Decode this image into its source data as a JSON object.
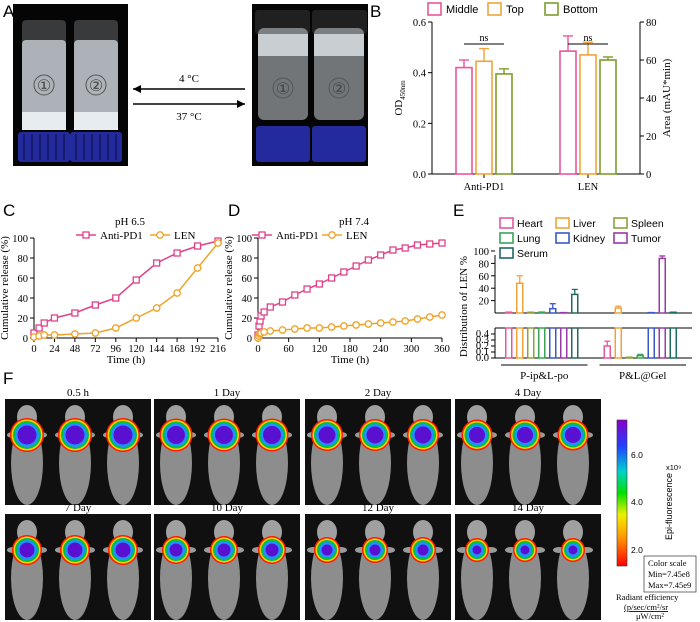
{
  "panels": {
    "A": "A",
    "B": "B",
    "C": "C",
    "D": "D",
    "E": "E",
    "F": "F"
  },
  "panel_a": {
    "vial1_marker": "①",
    "vial2_marker": "②",
    "arrow_top_label": "4 °C",
    "arrow_bottom_label": "37 °C",
    "colors": {
      "background": "#000000",
      "cap": "#232a9c",
      "gel": "#dfe6ea"
    }
  },
  "chart_data": [
    {
      "id": "B",
      "type": "bar",
      "categories": [
        "Anti-PD1",
        "LEN"
      ],
      "series": [
        {
          "name": "Middle",
          "color": "#e8569c",
          "values": [
            0.42,
            0.485
          ],
          "errors": [
            0.03,
            0.06
          ]
        },
        {
          "name": "Top",
          "color": "#f0a33a",
          "values": [
            0.445,
            0.47
          ],
          "errors": [
            0.05,
            0.05
          ]
        },
        {
          "name": "Bottom",
          "color": "#7d9d2b",
          "values": [
            0.395,
            0.45
          ],
          "errors": [
            0.02,
            0.012
          ]
        }
      ],
      "significance": [
        "ns",
        "ns"
      ],
      "ylabel_left": "OD",
      "ylabel_left_sub": "450nm",
      "ylabel_right": "Area (mAU*min)",
      "ylim": [
        0.0,
        0.6
      ],
      "yticks": [
        "0.0",
        "0.2",
        "0.4",
        "0.6"
      ],
      "ylim_right": [
        0,
        80
      ],
      "yticks_right": [
        "0",
        "20",
        "40",
        "60",
        "80"
      ],
      "legend_position": "top"
    },
    {
      "id": "C",
      "type": "line",
      "title": "pH 6.5",
      "xlabel": "Time (h)",
      "ylabel": "Cumulative release (%)",
      "xlim": [
        0,
        216
      ],
      "ylim": [
        0,
        100
      ],
      "xticks": [
        "0",
        "24",
        "48",
        "72",
        "96",
        "120",
        "144",
        "168",
        "192",
        "216"
      ],
      "yticks": [
        "0",
        "20",
        "40",
        "60",
        "80",
        "100"
      ],
      "legend_position": "top",
      "series": [
        {
          "name": "Anti-PD1",
          "color": "#e0428a",
          "marker": "square",
          "x": [
            0,
            6,
            12,
            24,
            48,
            72,
            96,
            120,
            144,
            168,
            192,
            216
          ],
          "y": [
            5,
            10,
            15,
            20,
            25,
            33,
            40,
            58,
            75,
            85,
            92,
            97
          ]
        },
        {
          "name": "LEN",
          "color": "#f0a32a",
          "marker": "circle",
          "x": [
            0,
            6,
            12,
            24,
            48,
            72,
            96,
            120,
            144,
            168,
            192,
            216
          ],
          "y": [
            1,
            2,
            3,
            3,
            4,
            5,
            10,
            20,
            30,
            45,
            70,
            95
          ]
        }
      ]
    },
    {
      "id": "D",
      "type": "line",
      "title": "pH 7.4",
      "xlabel": "Time (h)",
      "ylabel": "Cumulative release (%)",
      "xlim": [
        0,
        360
      ],
      "ylim": [
        0,
        100
      ],
      "xticks": [
        "0",
        "60",
        "120",
        "180",
        "240",
        "300",
        "360"
      ],
      "yticks": [
        "0",
        "20",
        "40",
        "60",
        "80",
        "100"
      ],
      "legend_position": "top",
      "series": [
        {
          "name": "Anti-PD1",
          "color": "#e0428a",
          "marker": "square",
          "x": [
            0,
            2,
            4,
            6,
            12,
            24,
            48,
            72,
            96,
            120,
            144,
            168,
            192,
            216,
            240,
            264,
            288,
            312,
            336,
            360
          ],
          "y": [
            3,
            12,
            17,
            22,
            26,
            31,
            36,
            43,
            49,
            54,
            60,
            66,
            72,
            78,
            83,
            88,
            90,
            93,
            94,
            95
          ]
        },
        {
          "name": "LEN",
          "color": "#f0a32a",
          "marker": "circle",
          "x": [
            0,
            2,
            4,
            6,
            12,
            24,
            48,
            72,
            96,
            120,
            144,
            168,
            192,
            216,
            240,
            264,
            288,
            312,
            336,
            360
          ],
          "y": [
            0,
            2,
            4,
            5,
            6,
            7,
            8,
            9,
            10,
            10,
            11,
            12,
            13,
            14,
            15,
            16,
            17,
            19,
            21,
            23
          ]
        }
      ]
    },
    {
      "id": "E",
      "type": "bar",
      "ylabel": "Distribution of LEN %",
      "groups": [
        "P-ip&L-po",
        "P&L@Gel"
      ],
      "yticks_top": [
        "20",
        "40",
        "60",
        "80",
        "100"
      ],
      "yticks_bottom": [
        "0.0",
        "0.1",
        "0.2",
        "0.3",
        "0.4"
      ],
      "ylim_top": [
        0,
        100
      ],
      "ylim_bottom": [
        0,
        0.5
      ],
      "axis_break": true,
      "legend_position": "top",
      "series": [
        {
          "name": "Heart",
          "color": "#e8569c",
          "values": [
            1.0,
            0.2
          ],
          "errors": [
            0.5,
            0.08
          ]
        },
        {
          "name": "Liver",
          "color": "#f0a33a",
          "values": [
            48,
            8
          ],
          "errors": [
            12,
            3
          ]
        },
        {
          "name": "Spleen",
          "color": "#8aa43a",
          "values": [
            1.0,
            0.01
          ],
          "errors": [
            0.3,
            0.005
          ]
        },
        {
          "name": "Lung",
          "color": "#3aa358",
          "values": [
            1.2,
            0.04
          ],
          "errors": [
            0.4,
            0.02
          ]
        },
        {
          "name": "Kidney",
          "color": "#3a58c8",
          "values": [
            7,
            0.5
          ],
          "errors": [
            8,
            0.2
          ]
        },
        {
          "name": "Tumor",
          "color": "#9a3aa8",
          "values": [
            0.5,
            88
          ],
          "errors": [
            0.2,
            4
          ]
        },
        {
          "name": "Serum",
          "color": "#1f6a62",
          "values": [
            30,
            1.0
          ],
          "errors": [
            8,
            0.3
          ]
        }
      ]
    }
  ],
  "panel_f": {
    "timepoints": [
      "0.5 h",
      "1 Day",
      "2 Day",
      "4 Day",
      "7 Day",
      "10 Day",
      "12 Day",
      "14 Day"
    ],
    "intensity": [
      1.0,
      0.95,
      0.9,
      0.85,
      0.8,
      0.7,
      0.6,
      0.5
    ],
    "scale_label": "Epi-fluorescence",
    "scale_exponent": "x10⁹",
    "scale_ticks": [
      "6.0",
      "4.0",
      "2.0"
    ],
    "color_scale_title": "Color scale",
    "color_scale_min": "Min=7.45e8",
    "color_scale_max": "Max=7.45e9",
    "units_title": "Radiant efficiency",
    "units_line1": "(p/sec/cm²/sr",
    "units_line2": "μW/cm²",
    "colors": {
      "tile_bg": "#101010",
      "mouse": "#8d8d8d"
    }
  }
}
